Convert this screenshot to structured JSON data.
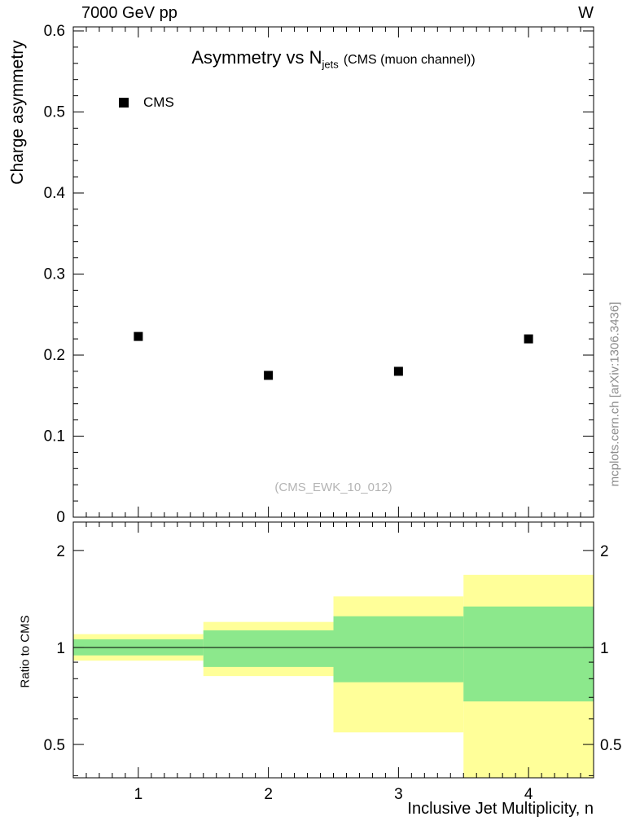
{
  "header": {
    "left": "7000 GeV pp",
    "right": "W"
  },
  "top_panel": {
    "title_main": "Asymmetry vs N",
    "title_sub": "jets",
    "title_paren": "(CMS (muon channel))",
    "ylabel": "Charge asymmetry",
    "legend": [
      {
        "label": "CMS",
        "marker": "filled-square",
        "color": "#000000"
      }
    ],
    "watermark": "(CMS_EWK_10_012)"
  },
  "bottom_panel": {
    "ylabel": "Ratio to CMS"
  },
  "xlabel": "Inclusive Jet Multiplicity, n",
  "side_note": "mcplots.cern.ch [arXiv:1306.3436]",
  "chart_data": [
    {
      "type": "scatter",
      "title": "Asymmetry vs N_jets (CMS (muon channel))",
      "xlabel": "Inclusive Jet Multiplicity, n",
      "ylabel": "Charge asymmetry",
      "xlim": [
        0.5,
        4.5
      ],
      "ylim": [
        0,
        0.605
      ],
      "xticks": [
        1,
        2,
        3,
        4
      ],
      "yticks": [
        0,
        0.1,
        0.2,
        0.3,
        0.4,
        0.5,
        0.6
      ],
      "grid": false,
      "legend_position": "top-left",
      "series": [
        {
          "name": "CMS",
          "marker": "filled-square",
          "color": "#000000",
          "x": [
            1,
            2,
            3,
            4
          ],
          "y": [
            0.223,
            0.175,
            0.18,
            0.22
          ]
        }
      ]
    },
    {
      "type": "area",
      "title": "Ratio to CMS",
      "ylabel": "Ratio to CMS",
      "yscale": "log",
      "ylim": [
        0.394,
        2.45
      ],
      "yticks": [
        0.5,
        1,
        2
      ],
      "ytick_labels": [
        "0.5",
        "1",
        "2"
      ],
      "minor_yticks": [
        0.4,
        0.6,
        0.7,
        0.8,
        0.9
      ],
      "xticks": [
        1,
        2,
        3,
        4
      ],
      "bin_edges": [
        0.5,
        1.5,
        2.5,
        3.5,
        4.5
      ],
      "bands": [
        {
          "name": "outer-uncertainty",
          "color": "#FFFF99",
          "lo": [
            0.91,
            0.815,
            0.545,
            0.35
          ],
          "hi": [
            1.1,
            1.2,
            1.44,
            1.68
          ]
        },
        {
          "name": "inner-uncertainty",
          "color": "#8CE88C",
          "lo": [
            0.945,
            0.87,
            0.78,
            0.68
          ],
          "hi": [
            1.06,
            1.13,
            1.25,
            1.34
          ]
        }
      ],
      "reference_line": 1
    }
  ]
}
